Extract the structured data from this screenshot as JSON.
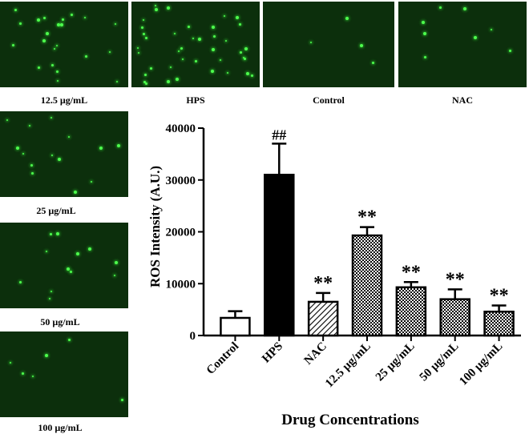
{
  "panels": [
    {
      "caption": "12.5 µg/mL"
    },
    {
      "caption": "HPS"
    },
    {
      "caption": "Control"
    },
    {
      "caption": "NAC"
    },
    {
      "caption": "25 µg/mL"
    },
    {
      "caption": "50 µg/mL"
    },
    {
      "caption": "100 µg/mL"
    }
  ],
  "chart_data": {
    "type": "bar",
    "title": "",
    "xlabel": "Drug Concentrations",
    "ylabel": "ROS Intensity (A.U.)",
    "ylim": [
      0,
      40000
    ],
    "yticks": [
      "0",
      "10000",
      "20000",
      "30000",
      "40000"
    ],
    "categories": [
      "Control",
      "HPS",
      "NAC",
      "12.5 µg/mL",
      "25 µg/mL",
      "50 µg/mL",
      "100 µg/mL"
    ],
    "values": [
      3400,
      31000,
      6500,
      19300,
      9300,
      7000,
      4600
    ],
    "errors": [
      1300,
      6000,
      1700,
      1600,
      1000,
      1900,
      1200
    ],
    "annotations": [
      "",
      "##",
      "**",
      "**",
      "**",
      "**",
      "**"
    ],
    "fills": [
      "white",
      "black",
      "diagonal-hatch",
      "checker",
      "checker",
      "checker",
      "checker"
    ],
    "grid": false
  }
}
